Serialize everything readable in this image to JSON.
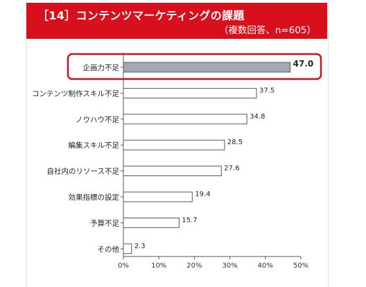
{
  "header": {
    "title": "［14］コンテンツマーケティングの課題",
    "subtitle": "（複数回答、n=605）"
  },
  "colors": {
    "header_bg": "#d8101d",
    "highlight_border": "#c4141c",
    "bar_highlight": "#a6a6b4",
    "bar_default": "#ffffff"
  },
  "chart_data": {
    "type": "bar",
    "orientation": "horizontal",
    "categories": [
      "企画力不足",
      "コンテンツ制作スキル不足",
      "ノウハウ不足",
      "編集スキル不足",
      "自社内のリソース不足",
      "効果指標の設定",
      "予算不足",
      "その他"
    ],
    "values": [
      47.0,
      37.5,
      34.8,
      28.5,
      27.6,
      19.4,
      15.7,
      2.3
    ],
    "value_labels": [
      "47.0",
      "37.5",
      "34.8",
      "28.5",
      "27.6",
      "19.4",
      "15.7",
      "2.3"
    ],
    "highlighted_category": "企画力不足",
    "xlim": [
      0,
      50
    ],
    "xticks": [
      "0%",
      "10%",
      "20%",
      "30%",
      "40%",
      "50%"
    ],
    "grid": false
  }
}
